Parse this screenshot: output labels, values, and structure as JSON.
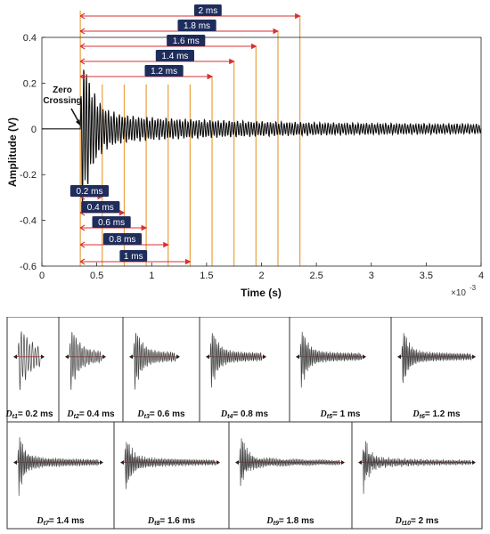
{
  "chart_data": {
    "type": "line",
    "title": "",
    "xlabel": "Time (s)",
    "ylabel": "Amplitude (V)",
    "x_exponent_label": "×10",
    "x_exponent_power": "-3",
    "xlim": [
      0,
      4
    ],
    "ylim": [
      -0.6,
      0.4
    ],
    "xticks": [
      0,
      0.5,
      1,
      1.5,
      2,
      2.5,
      3,
      3.5,
      4
    ],
    "xtick_labels": [
      "0",
      "0.5",
      "1",
      "1.5",
      "2",
      "2.5",
      "3",
      "3.5",
      "4"
    ],
    "yticks": [
      -0.6,
      -0.4,
      -0.2,
      0,
      0.2,
      0.4
    ],
    "ytick_labels": [
      "-0.6",
      "-0.4",
      "-0.2",
      "0",
      "0.2",
      "0.4"
    ],
    "grid": false,
    "zero_crossing_ms": 0.35,
    "annotation": "Zero\nCrossing",
    "durations_ms": [
      0.2,
      0.4,
      0.6,
      0.8,
      1.0,
      1.2,
      1.4,
      1.6,
      1.8,
      2.0
    ],
    "duration_labels": [
      "0.2 ms",
      "0.4 ms",
      "0.6 ms",
      "0.8 ms",
      "1 ms",
      "1.2 ms",
      "1.4 ms",
      "1.6 ms",
      "1.8 ms",
      "2 ms"
    ],
    "colors": {
      "signal": "#111111",
      "marker_line": "#e8a040",
      "arrow": "#d93030",
      "label_bg": "#1f2d5c",
      "label_text": "#ffffff"
    }
  },
  "panels": {
    "labels": [
      {
        "sub": "t1",
        "value": "= 0.2 ms"
      },
      {
        "sub": "t2",
        "value": "= 0.4 ms"
      },
      {
        "sub": "t3",
        "value": "= 0.6 ms"
      },
      {
        "sub": "t4",
        "value": "= 0.8 ms"
      },
      {
        "sub": "t5",
        "value": "= 1 ms"
      },
      {
        "sub": "t6",
        "value": "= 1.2 ms"
      },
      {
        "sub": "t7",
        "value": "= 1.4 ms"
      },
      {
        "sub": "t8",
        "value": "= 1.6 ms"
      },
      {
        "sub": "t9",
        "value": "= 1.8 ms"
      },
      {
        "sub": "t10",
        "value": "= 2 ms"
      }
    ],
    "symbol": "D"
  }
}
